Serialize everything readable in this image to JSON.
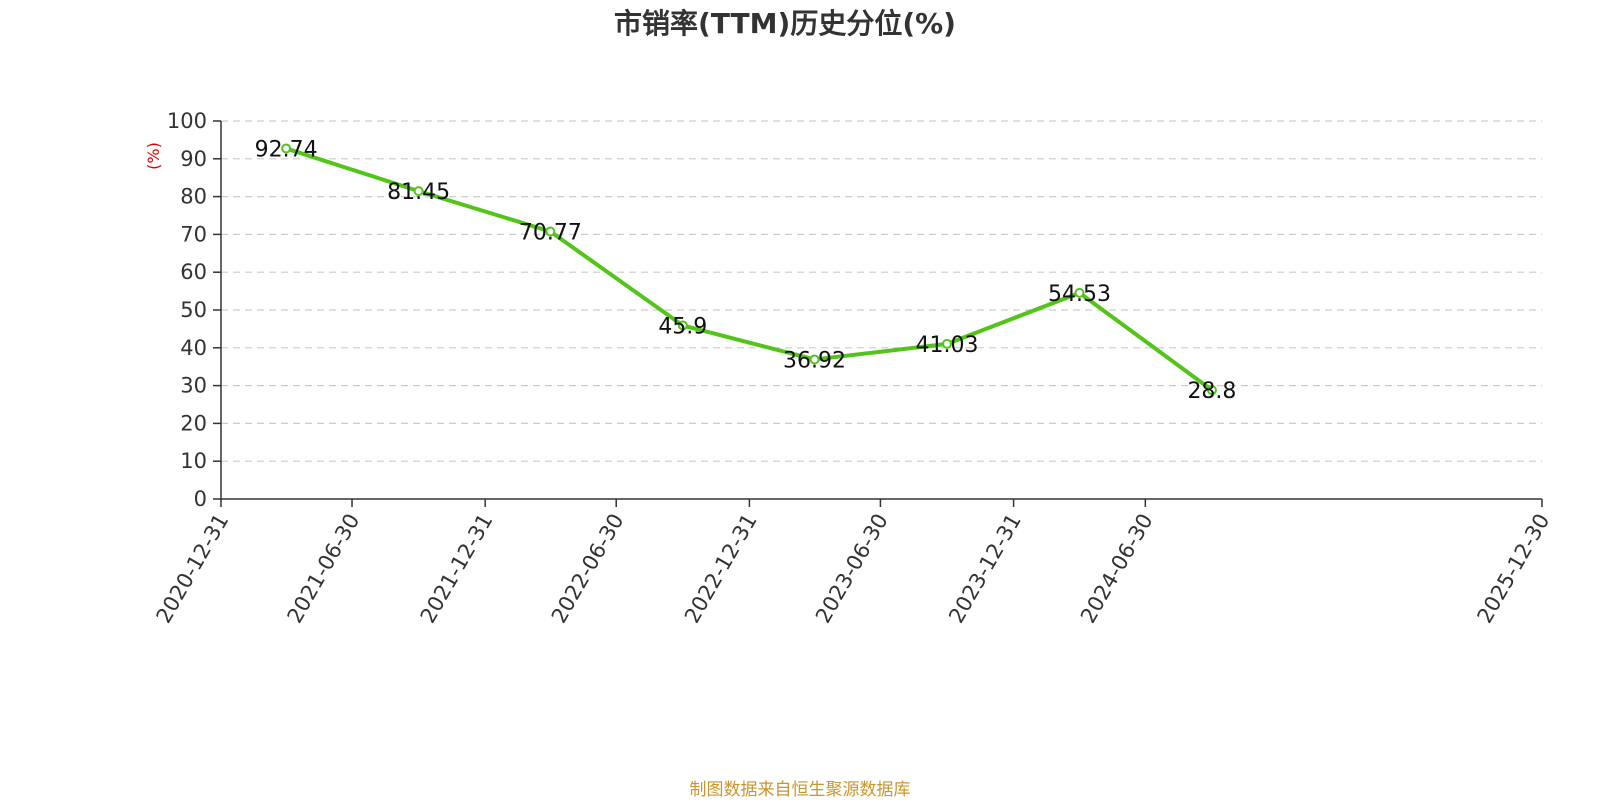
{
  "chart_data": {
    "type": "line",
    "title": "市销率(TTM)历史分位(%)",
    "ylabel": "(%)",
    "ylim": [
      0,
      100
    ],
    "yticks": [
      0,
      10,
      20,
      30,
      40,
      50,
      60,
      70,
      80,
      90,
      100
    ],
    "xticks": [
      "2020-12-31",
      "2021-06-30",
      "2021-12-31",
      "2022-06-30",
      "2022-12-31",
      "2023-06-30",
      "2023-12-31",
      "2024-06-30",
      "2025-12-30"
    ],
    "x": [
      "2021-03-31",
      "2021-09-30",
      "2022-03-31",
      "2022-09-30",
      "2023-03-31",
      "2023-09-30",
      "2024-03-31",
      "2024-09-30"
    ],
    "values": [
      92.74,
      81.45,
      70.77,
      45.9,
      36.92,
      41.03,
      54.53,
      28.8
    ],
    "labels": [
      "92.74",
      "81.45",
      "70.77",
      "45.9",
      "36.92",
      "41.03",
      "54.53",
      "28.8"
    ],
    "grid": true,
    "line_color": "#52c41a",
    "unit_color": "#e00000"
  },
  "source": {
    "text": "制图数据来自恒生聚源数据库",
    "color": "#c8962e"
  }
}
